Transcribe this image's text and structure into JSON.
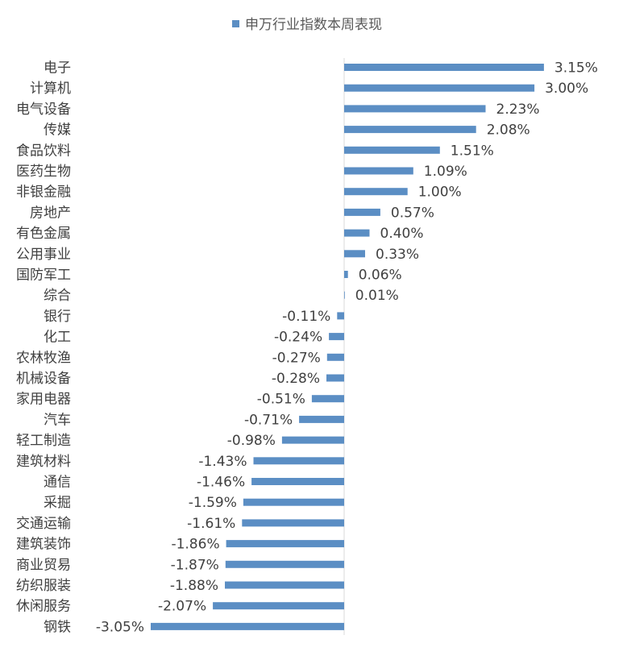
{
  "chart_data": {
    "type": "bar",
    "orientation": "horizontal",
    "legend_position": "top",
    "grid": false,
    "color": "#5b8ec4",
    "series": [
      {
        "name": "申万行业指数本周表现"
      }
    ],
    "categories": [
      "电子",
      "计算机",
      "电气设备",
      "传媒",
      "食品饮料",
      "医药生物",
      "非银金融",
      "房地产",
      "有色金属",
      "公用事业",
      "国防军工",
      "综合",
      "银行",
      "化工",
      "农林牧渔",
      "机械设备",
      "家用电器",
      "汽车",
      "轻工制造",
      "建筑材料",
      "通信",
      "采掘",
      "交通运输",
      "建筑装饰",
      "商业贸易",
      "纺织服装",
      "休闲服务",
      "钢铁"
    ],
    "values": [
      3.15,
      3.0,
      2.23,
      2.08,
      1.51,
      1.09,
      1.0,
      0.57,
      0.4,
      0.33,
      0.06,
      0.01,
      -0.11,
      -0.24,
      -0.27,
      -0.28,
      -0.51,
      -0.71,
      -0.98,
      -1.43,
      -1.46,
      -1.59,
      -1.61,
      -1.86,
      -1.87,
      -1.88,
      -2.07,
      -3.05
    ],
    "value_labels": [
      "3.15%",
      "3.00%",
      "2.23%",
      "2.08%",
      "1.51%",
      "1.09%",
      "1.00%",
      "0.57%",
      "0.40%",
      "0.33%",
      "0.06%",
      "0.01%",
      "-0.11%",
      "-0.24%",
      "-0.27%",
      "-0.28%",
      "-0.51%",
      "-0.71%",
      "-0.98%",
      "-1.43%",
      "-1.46%",
      "-1.59%",
      "-1.61%",
      "-1.86%",
      "-1.87%",
      "-1.88%",
      "-2.07%",
      "-3.05%"
    ]
  }
}
